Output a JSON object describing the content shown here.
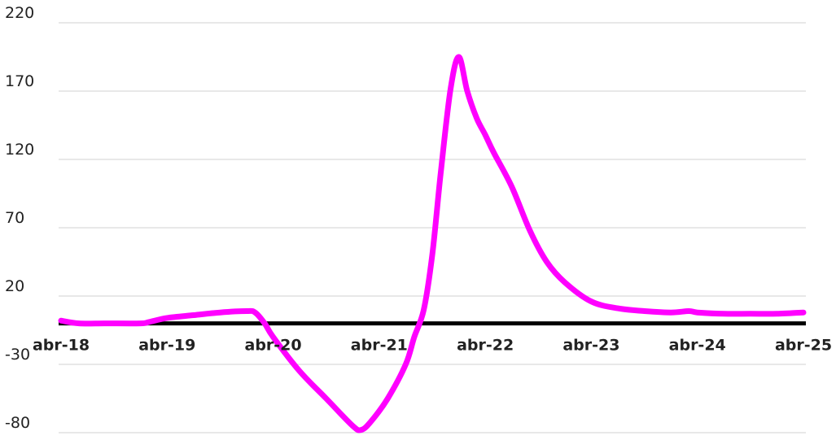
{
  "chart_data": {
    "type": "line",
    "title": "",
    "xlabel": "",
    "ylabel": "",
    "ylim": [
      -80,
      220
    ],
    "y_ticks": [
      -80,
      -30,
      20,
      70,
      120,
      170,
      220
    ],
    "x_ticks": [
      "abr-18",
      "abr-19",
      "abr-20",
      "abr-21",
      "abr-22",
      "abr-23",
      "abr-24",
      "abr-25"
    ],
    "grid": true,
    "legend": "none",
    "series": [
      {
        "color": "#ff00ff",
        "x": [
          2018.25,
          2018.42,
          2018.67,
          2019.0,
          2019.08,
          2019.25,
          2019.5,
          2019.75,
          2020.0,
          2020.08,
          2020.17,
          2020.25,
          2020.5,
          2020.75,
          2021.0,
          2021.08,
          2021.17,
          2021.33,
          2021.5,
          2021.58,
          2021.67,
          2021.75,
          2021.83,
          2021.92,
          2022.0,
          2022.08,
          2022.17,
          2022.25,
          2022.33,
          2022.5,
          2022.67,
          2022.83,
          2023.0,
          2023.25,
          2023.5,
          2023.75,
          2024.0,
          2024.17,
          2024.25,
          2024.5,
          2024.75,
          2025.0,
          2025.25
        ],
        "y": [
          2,
          0,
          0,
          0,
          1,
          4,
          6,
          8,
          9,
          8,
          0,
          -10,
          -35,
          -55,
          -75,
          -78,
          -72,
          -55,
          -30,
          -10,
          10,
          50,
          110,
          170,
          195,
          170,
          150,
          138,
          125,
          100,
          68,
          45,
          30,
          16,
          11,
          9,
          8,
          9,
          8,
          7,
          7,
          7,
          8
        ]
      }
    ]
  }
}
